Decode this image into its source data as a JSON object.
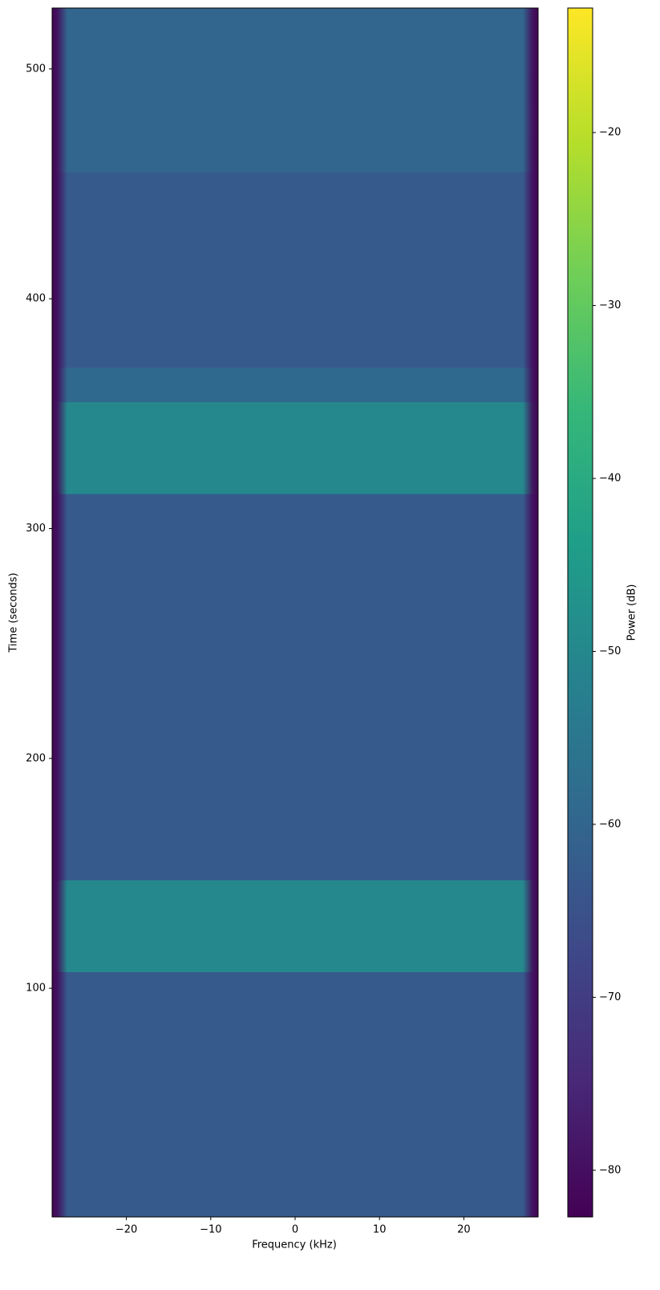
{
  "chart_data": {
    "type": "spectrogram",
    "xlabel": "Frequency (kHz)",
    "ylabel": "Time (seconds)",
    "colorbar_label": "Power (dB)",
    "xlim": [
      -28.8,
      28.8
    ],
    "ylim": [
      0.5,
      526.5
    ],
    "xticks": [
      {
        "value": -20,
        "label": "−20"
      },
      {
        "value": -10,
        "label": "−10"
      },
      0,
      10,
      20
    ],
    "yticks": [
      100,
      200,
      300,
      400,
      500
    ],
    "clim": [
      -82.7,
      -12.8
    ],
    "cticks": [
      {
        "value": -80,
        "label": "−80"
      },
      {
        "value": -70,
        "label": "−70"
      },
      {
        "value": -60,
        "label": "−60"
      },
      {
        "value": -50,
        "label": "−50"
      },
      {
        "value": -40,
        "label": "−40"
      },
      {
        "value": -30,
        "label": "−30"
      },
      {
        "value": -20,
        "label": "−20"
      }
    ],
    "colormap": [
      "#440154",
      "#482878",
      "#3e4989",
      "#31688e",
      "#26828e",
      "#1f9e89",
      "#35b779",
      "#6ece58",
      "#b5de2b",
      "#fde725"
    ],
    "background_power": -63,
    "edge_power": -82,
    "passband": [
      -27,
      27
    ],
    "regions": [
      {
        "time": [
          107,
          147
        ],
        "power": -50
      },
      {
        "time": [
          315,
          355
        ],
        "power": -50
      },
      {
        "time": [
          355,
          370
        ],
        "power": -59
      },
      {
        "time": [
          455,
          526.5
        ],
        "power": -60
      }
    ]
  }
}
